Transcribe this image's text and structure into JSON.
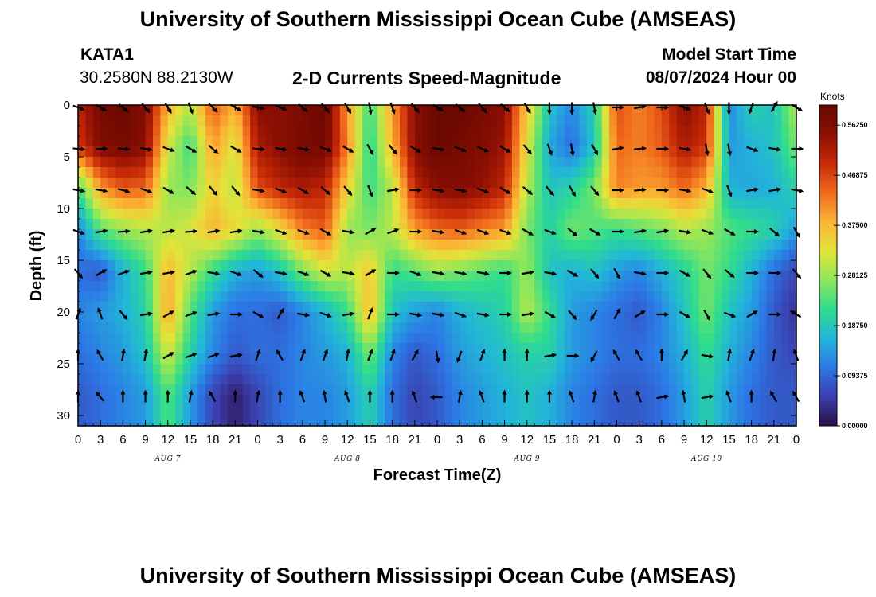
{
  "titles": {
    "top": "University of Southern Mississippi Ocean Cube (AMSEAS)",
    "bottom": "University of Southern Mississippi Ocean Cube (AMSEAS)"
  },
  "header": {
    "station": "KATA1",
    "coords": "30.2580N  88.2130W",
    "plot_title": "2-D Currents Speed-Magnitude",
    "model_start_label": "Model Start Time",
    "model_start_value": "08/07/2024 Hour 00"
  },
  "colorbar": {
    "unit": "Knots",
    "ticks": [
      0.0,
      0.09375,
      0.1875,
      0.28125,
      0.375,
      0.46875,
      0.5625
    ],
    "tick_labels": [
      "0.00000",
      "0.09375",
      "0.18750",
      "0.28125",
      "0.37500",
      "0.46875",
      "0.56250"
    ],
    "max": 0.6,
    "colors": [
      "#2b0f47",
      "#3b3fae",
      "#2c78e6",
      "#22b6d8",
      "#2edc8e",
      "#8ee65a",
      "#e2e43a",
      "#fcb335",
      "#f06a1c",
      "#c82a07",
      "#8c0f03",
      "#6a0802"
    ]
  },
  "chart_data": {
    "type": "heatmap",
    "title": "2-D Currents Speed-Magnitude",
    "xlabel": "Forecast Time(Z)",
    "ylabel": "Depth (ft)",
    "x_ticks": [
      "0",
      "3",
      "6",
      "9",
      "12",
      "15",
      "18",
      "21",
      "0",
      "3",
      "6",
      "9",
      "12",
      "15",
      "18",
      "21",
      "0",
      "3",
      "6",
      "9",
      "12",
      "15",
      "18",
      "21",
      "0",
      "3",
      "6",
      "9",
      "12",
      "15",
      "18",
      "21",
      "0"
    ],
    "x_hours": [
      0,
      96
    ],
    "date_labels": [
      {
        "label": "AUG 7",
        "hour": 12
      },
      {
        "label": "AUG 8",
        "hour": 36
      },
      {
        "label": "AUG 9",
        "hour": 60
      },
      {
        "label": "AUG 10",
        "hour": 84
      }
    ],
    "y_ticks": [
      0,
      5,
      10,
      15,
      20,
      25,
      30
    ],
    "ylim": [
      0,
      31
    ],
    "depth_levels": [
      0,
      4,
      8,
      12,
      16,
      20,
      24,
      28
    ],
    "hours": [
      0,
      3,
      6,
      9,
      12,
      15,
      18,
      21,
      24,
      27,
      30,
      33,
      36,
      39,
      42,
      45,
      48,
      51,
      54,
      57,
      60,
      63,
      66,
      69,
      72,
      75,
      78,
      81,
      84,
      87,
      90,
      93,
      96
    ],
    "speed_knots": [
      [
        0.5,
        0.58,
        0.6,
        0.56,
        0.38,
        0.3,
        0.45,
        0.38,
        0.55,
        0.55,
        0.57,
        0.6,
        0.4,
        0.22,
        0.4,
        0.55,
        0.6,
        0.6,
        0.58,
        0.55,
        0.36,
        0.18,
        0.12,
        0.2,
        0.46,
        0.42,
        0.46,
        0.55,
        0.5,
        0.12,
        0.2,
        0.18,
        0.3
      ],
      [
        0.48,
        0.56,
        0.58,
        0.55,
        0.32,
        0.22,
        0.4,
        0.32,
        0.52,
        0.55,
        0.58,
        0.58,
        0.42,
        0.2,
        0.38,
        0.55,
        0.6,
        0.58,
        0.56,
        0.53,
        0.33,
        0.15,
        0.1,
        0.18,
        0.44,
        0.42,
        0.45,
        0.52,
        0.48,
        0.14,
        0.16,
        0.18,
        0.26
      ],
      [
        0.22,
        0.4,
        0.45,
        0.44,
        0.28,
        0.26,
        0.35,
        0.3,
        0.46,
        0.5,
        0.52,
        0.5,
        0.35,
        0.22,
        0.3,
        0.5,
        0.55,
        0.56,
        0.54,
        0.5,
        0.3,
        0.18,
        0.2,
        0.26,
        0.42,
        0.4,
        0.4,
        0.44,
        0.38,
        0.16,
        0.15,
        0.16,
        0.2
      ],
      [
        0.12,
        0.24,
        0.28,
        0.3,
        0.3,
        0.32,
        0.38,
        0.34,
        0.28,
        0.34,
        0.42,
        0.45,
        0.28,
        0.26,
        0.3,
        0.4,
        0.44,
        0.45,
        0.42,
        0.4,
        0.26,
        0.2,
        0.26,
        0.24,
        0.22,
        0.24,
        0.26,
        0.3,
        0.28,
        0.24,
        0.22,
        0.2,
        0.14
      ],
      [
        0.1,
        0.08,
        0.16,
        0.22,
        0.38,
        0.3,
        0.22,
        0.16,
        0.14,
        0.18,
        0.26,
        0.32,
        0.3,
        0.36,
        0.22,
        0.24,
        0.28,
        0.26,
        0.24,
        0.22,
        0.28,
        0.18,
        0.16,
        0.18,
        0.14,
        0.12,
        0.16,
        0.2,
        0.26,
        0.22,
        0.16,
        0.1,
        0.06
      ],
      [
        0.12,
        0.14,
        0.16,
        0.2,
        0.4,
        0.24,
        0.14,
        0.1,
        0.1,
        0.08,
        0.12,
        0.16,
        0.22,
        0.38,
        0.18,
        0.14,
        0.12,
        0.16,
        0.18,
        0.2,
        0.3,
        0.22,
        0.14,
        0.12,
        0.1,
        0.08,
        0.12,
        0.18,
        0.26,
        0.18,
        0.14,
        0.08,
        0.04
      ],
      [
        0.1,
        0.12,
        0.14,
        0.18,
        0.32,
        0.2,
        0.12,
        0.08,
        0.1,
        0.1,
        0.12,
        0.14,
        0.16,
        0.26,
        0.12,
        0.08,
        0.1,
        0.14,
        0.16,
        0.18,
        0.2,
        0.2,
        0.14,
        0.12,
        0.1,
        0.1,
        0.12,
        0.16,
        0.22,
        0.16,
        0.12,
        0.08,
        0.06
      ],
      [
        0.08,
        0.1,
        0.12,
        0.14,
        0.24,
        0.14,
        0.06,
        0.02,
        0.06,
        0.1,
        0.12,
        0.12,
        0.14,
        0.2,
        0.1,
        0.06,
        0.08,
        0.12,
        0.14,
        0.16,
        0.18,
        0.16,
        0.12,
        0.1,
        0.08,
        0.08,
        0.1,
        0.14,
        0.2,
        0.14,
        0.1,
        0.08,
        0.08
      ]
    ],
    "arrow_hours": [
      0,
      3,
      6,
      9,
      12,
      15,
      18,
      21,
      24,
      27,
      30,
      33,
      36,
      39,
      42,
      45,
      48,
      51,
      54,
      57,
      60,
      63,
      66,
      69,
      72,
      75,
      78,
      81,
      84,
      87,
      90,
      93,
      96
    ],
    "arrow_depths": [
      0,
      4,
      8,
      12,
      16,
      20,
      24,
      28
    ],
    "arrow_dir_deg": [
      [
        110,
        120,
        130,
        140,
        150,
        160,
        135,
        120,
        100,
        110,
        130,
        140,
        150,
        170,
        160,
        140,
        120,
        130,
        140,
        130,
        150,
        180,
        180,
        170,
        90,
        80,
        90,
        110,
        160,
        180,
        200,
        30,
        120
      ],
      [
        95,
        90,
        95,
        100,
        110,
        120,
        130,
        120,
        95,
        100,
        100,
        110,
        120,
        150,
        140,
        120,
        100,
        110,
        115,
        120,
        140,
        160,
        170,
        150,
        80,
        85,
        90,
        100,
        170,
        170,
        110,
        100,
        90
      ],
      [
        100,
        100,
        105,
        110,
        120,
        130,
        140,
        140,
        100,
        110,
        120,
        130,
        140,
        160,
        80,
        90,
        100,
        100,
        110,
        120,
        130,
        140,
        150,
        140,
        90,
        85,
        90,
        100,
        110,
        160,
        80,
        80,
        100
      ],
      [
        110,
        80,
        85,
        80,
        80,
        85,
        80,
        80,
        100,
        110,
        110,
        120,
        100,
        60,
        70,
        90,
        100,
        110,
        110,
        110,
        120,
        110,
        130,
        120,
        90,
        80,
        80,
        100,
        110,
        120,
        90,
        130,
        150
      ],
      [
        140,
        60,
        70,
        80,
        80,
        70,
        100,
        110,
        130,
        100,
        110,
        120,
        100,
        60,
        90,
        110,
        100,
        100,
        100,
        90,
        80,
        100,
        120,
        140,
        150,
        100,
        90,
        120,
        140,
        130,
        90,
        90,
        140
      ],
      [
        20,
        -20,
        140,
        80,
        60,
        70,
        80,
        90,
        120,
        30,
        100,
        110,
        80,
        20,
        90,
        100,
        100,
        110,
        100,
        90,
        80,
        120,
        140,
        210,
        30,
        60,
        90,
        120,
        150,
        110,
        60,
        90,
        -60
      ],
      [
        0,
        -30,
        10,
        10,
        60,
        70,
        70,
        80,
        20,
        -30,
        20,
        20,
        10,
        20,
        20,
        30,
        170,
        200,
        20,
        0,
        0,
        80,
        90,
        210,
        -30,
        -30,
        0,
        30,
        100,
        10,
        20,
        10,
        -20
      ],
      [
        0,
        -40,
        0,
        0,
        0,
        10,
        -30,
        0,
        10,
        0,
        -20,
        -10,
        -20,
        0,
        0,
        -20,
        -90,
        10,
        -20,
        0,
        0,
        0,
        -20,
        10,
        -20,
        -20,
        80,
        -10,
        80,
        -20,
        0,
        -30,
        -30
      ]
    ]
  },
  "axis_ticks": {
    "x_label_text": "Forecast Time(Z)",
    "y_label_text": "Depth (ft)"
  }
}
